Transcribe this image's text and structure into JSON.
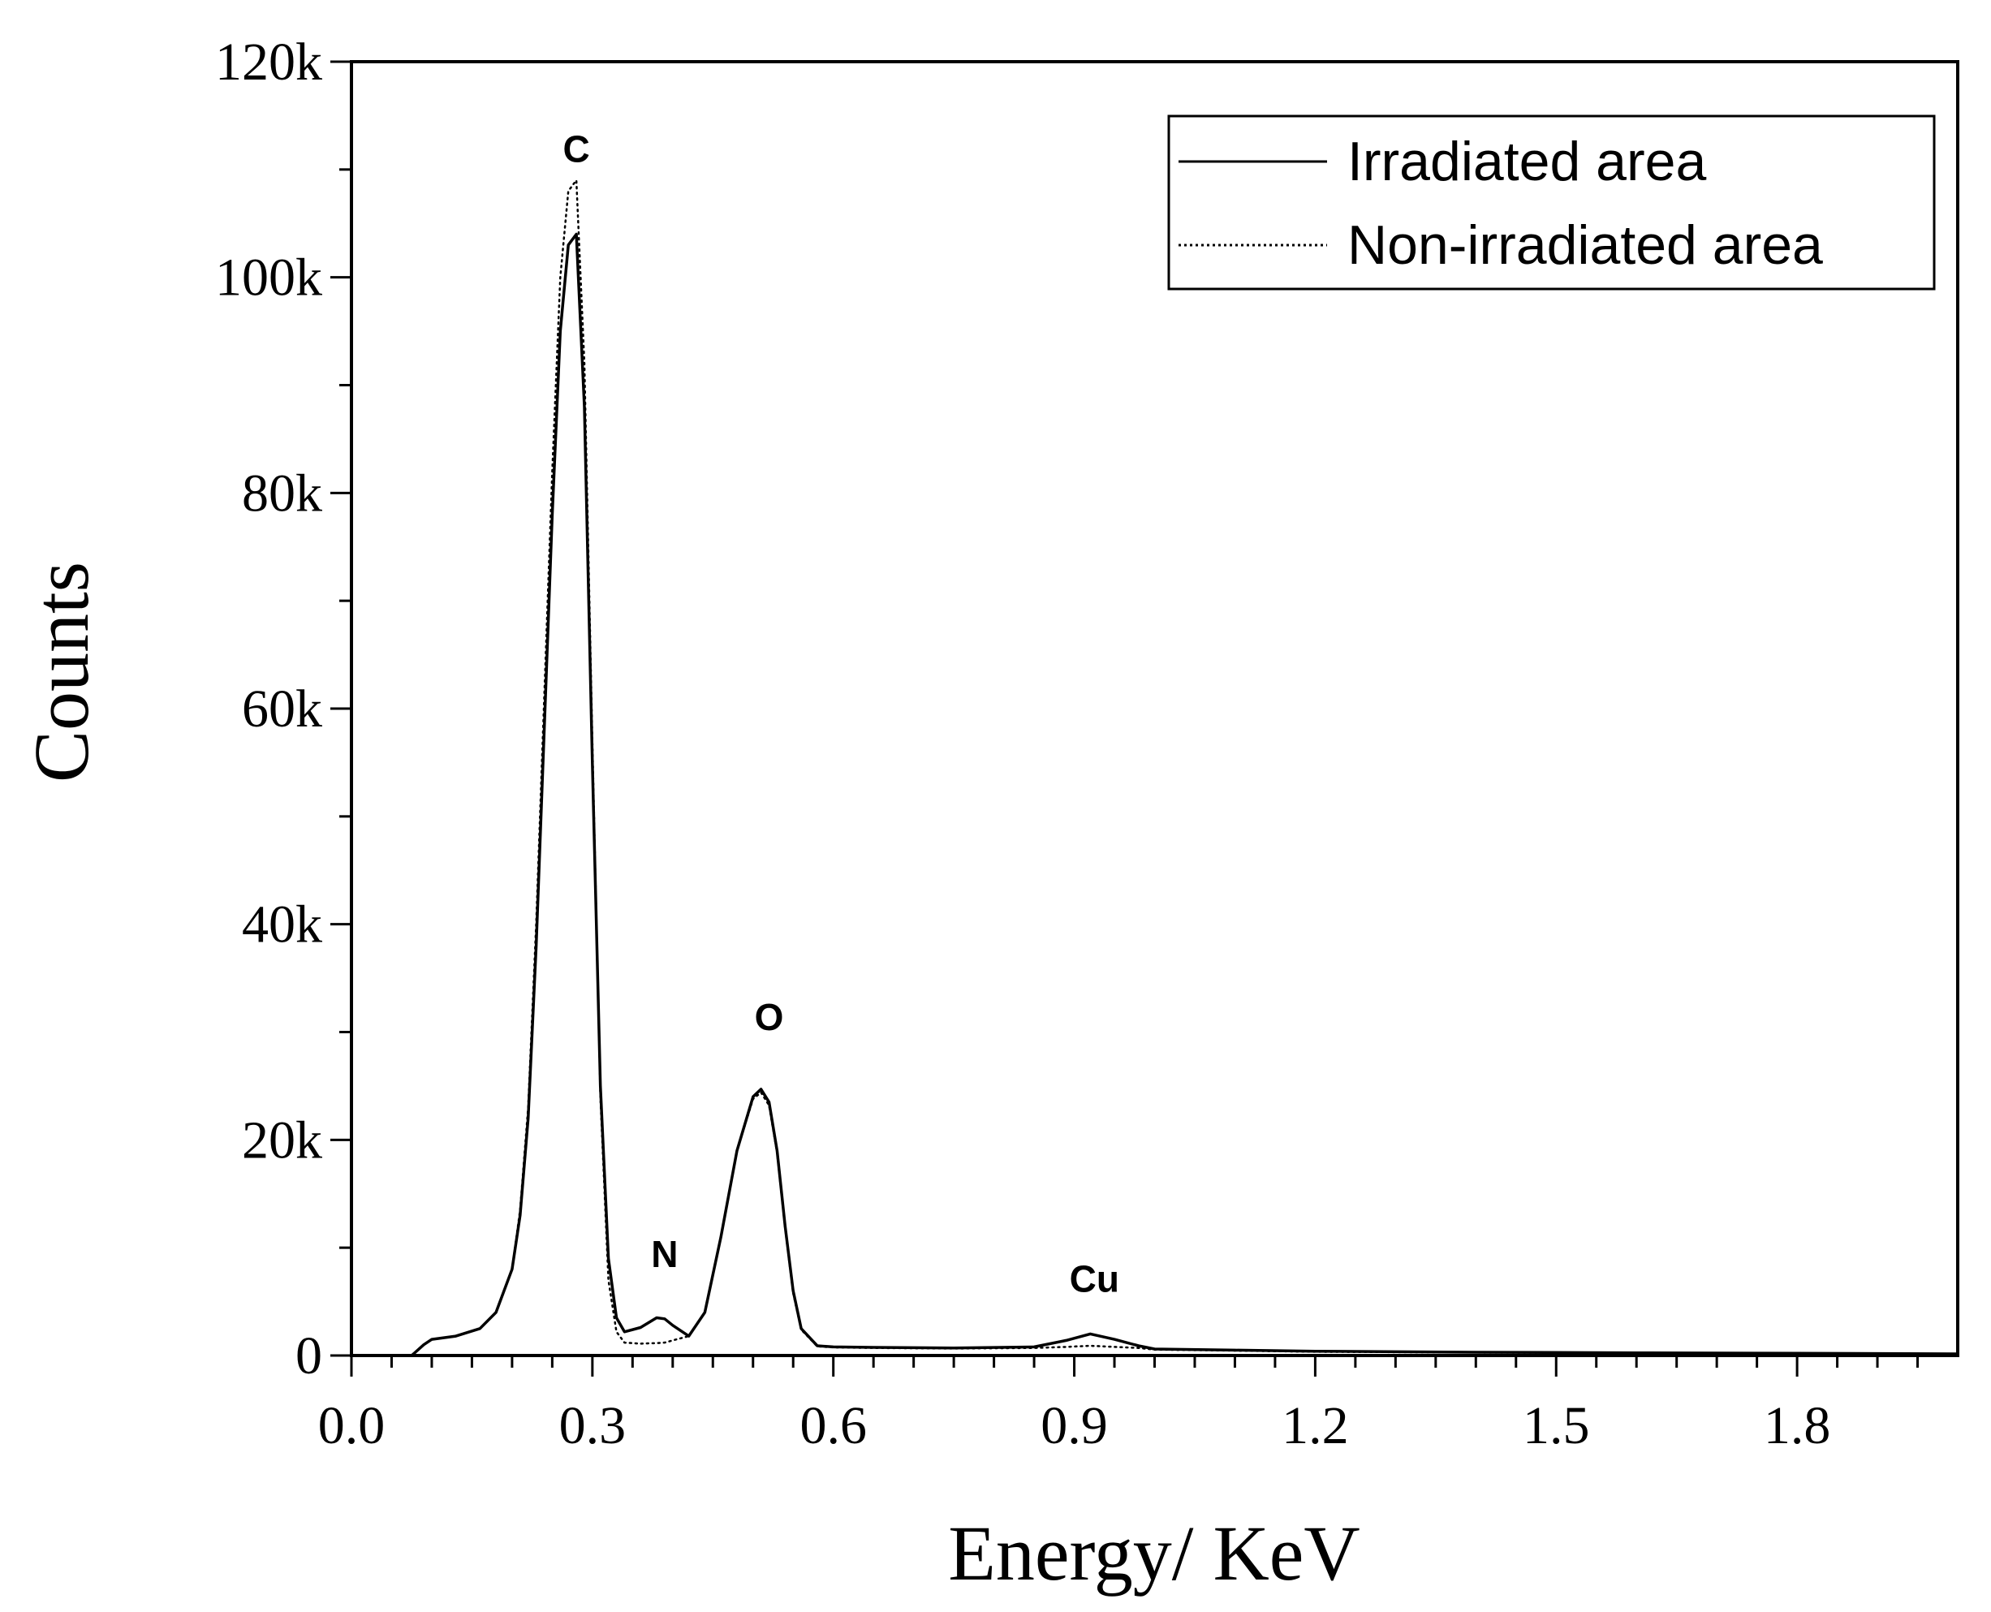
{
  "chart_data": {
    "type": "line",
    "title": "",
    "xlabel": "Energy/ KeV",
    "ylabel": "Counts",
    "xlim": [
      0.0,
      2.0
    ],
    "ylim": [
      0,
      120000
    ],
    "x_ticks": [
      0.0,
      0.3,
      0.6,
      0.9,
      1.2,
      1.5,
      1.8
    ],
    "x_tick_labels": [
      "0.0",
      "0.3",
      "0.6",
      "0.9",
      "1.2",
      "1.5",
      "1.8"
    ],
    "y_ticks": [
      0,
      20000,
      40000,
      60000,
      80000,
      100000,
      120000
    ],
    "y_tick_labels": [
      "0",
      "20k",
      "40k",
      "60k",
      "80k",
      "100k",
      "120k"
    ],
    "grid": false,
    "legend_position": "top-right",
    "series": [
      {
        "name": "Irradiated area",
        "style": "solid",
        "x": [
          0.075,
          0.09,
          0.1,
          0.13,
          0.16,
          0.18,
          0.2,
          0.21,
          0.22,
          0.23,
          0.24,
          0.25,
          0.26,
          0.27,
          0.28,
          0.29,
          0.3,
          0.31,
          0.32,
          0.33,
          0.34,
          0.36,
          0.38,
          0.39,
          0.4,
          0.42,
          0.44,
          0.46,
          0.48,
          0.5,
          0.51,
          0.52,
          0.53,
          0.54,
          0.55,
          0.56,
          0.58,
          0.6,
          0.65,
          0.75,
          0.85,
          0.89,
          0.92,
          0.95,
          0.98,
          1.0,
          1.1,
          1.2,
          1.4,
          1.6,
          1.8,
          2.0
        ],
        "y": [
          0,
          1000,
          1500,
          1800,
          2500,
          4000,
          8000,
          13000,
          22000,
          38000,
          58000,
          78000,
          95000,
          103000,
          104000,
          88000,
          55000,
          25000,
          9000,
          3500,
          2200,
          2600,
          3500,
          3400,
          2800,
          1800,
          4000,
          11000,
          19000,
          24000,
          24700,
          23500,
          19000,
          12000,
          6000,
          2500,
          900,
          800,
          750,
          700,
          800,
          1400,
          2000,
          1500,
          900,
          600,
          500,
          400,
          300,
          250,
          200,
          150
        ]
      },
      {
        "name": "Non-irradiated area",
        "style": "dotted",
        "x": [
          0.075,
          0.09,
          0.1,
          0.13,
          0.16,
          0.18,
          0.2,
          0.21,
          0.22,
          0.23,
          0.24,
          0.25,
          0.26,
          0.27,
          0.28,
          0.29,
          0.3,
          0.31,
          0.32,
          0.33,
          0.34,
          0.36,
          0.38,
          0.39,
          0.4,
          0.42,
          0.44,
          0.46,
          0.48,
          0.5,
          0.51,
          0.52,
          0.53,
          0.54,
          0.55,
          0.56,
          0.58,
          0.6,
          0.65,
          0.75,
          0.85,
          0.89,
          0.92,
          0.95,
          0.98,
          1.0,
          1.1,
          1.2,
          1.4,
          1.6,
          1.8,
          2.0
        ],
        "y": [
          0,
          1000,
          1500,
          1800,
          2500,
          4000,
          8000,
          13500,
          23000,
          40000,
          61000,
          82000,
          100000,
          108000,
          109000,
          92000,
          57000,
          24000,
          7000,
          2200,
          1200,
          1100,
          1150,
          1200,
          1400,
          1800,
          4000,
          11000,
          19000,
          23800,
          24400,
          23200,
          18800,
          11800,
          5800,
          2400,
          850,
          750,
          700,
          650,
          700,
          800,
          900,
          800,
          700,
          550,
          450,
          350,
          280,
          230,
          190,
          150
        ]
      }
    ],
    "annotations": [
      {
        "text": "C",
        "x": 0.28,
        "y": 109500
      },
      {
        "text": "N",
        "x": 0.39,
        "y": 7000
      },
      {
        "text": "O",
        "x": 0.52,
        "y": 29000
      },
      {
        "text": "Cu",
        "x": 0.925,
        "y": 4700
      }
    ]
  }
}
